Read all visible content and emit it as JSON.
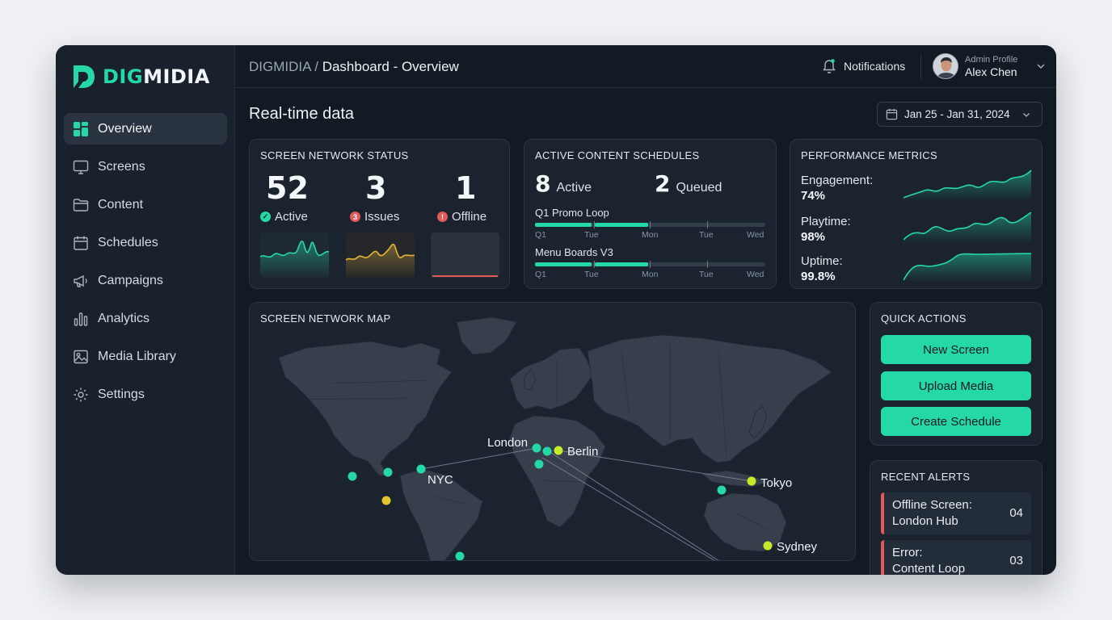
{
  "brand": {
    "name_part1": "DIG",
    "name_part2": "MIDIA"
  },
  "sidebar": {
    "items": [
      {
        "label": "Overview",
        "icon": "grid-icon",
        "active": true
      },
      {
        "label": "Screens",
        "icon": "monitor-icon"
      },
      {
        "label": "Content",
        "icon": "folder-icon"
      },
      {
        "label": "Schedules",
        "icon": "calendar-icon"
      },
      {
        "label": "Campaigns",
        "icon": "megaphone-icon"
      },
      {
        "label": "Analytics",
        "icon": "bar-chart-icon"
      },
      {
        "label": "Media Library",
        "icon": "image-icon"
      },
      {
        "label": "Settings",
        "icon": "gear-icon"
      }
    ]
  },
  "header": {
    "breadcrumb_root": "DIGMIDIA",
    "breadcrumb_sep": " / ",
    "breadcrumb_page": "Dashboard - Overview",
    "notifications_label": "Notifications",
    "profile_role": "Admin Profile",
    "profile_name": "Alex Chen"
  },
  "main": {
    "title": "Real-time data",
    "date_range": "Jan 25 - Jan 31, 2024"
  },
  "network_status": {
    "title": "SCREEN NETWORK STATUS",
    "active": {
      "value": "52",
      "label": "Active",
      "color": "#25d9a6"
    },
    "issues": {
      "value": "3",
      "label": "Issues",
      "badge": "3",
      "color": "#e05a5a"
    },
    "offline": {
      "value": "1",
      "label": "Offline",
      "badge": "!",
      "color": "#e05a5a"
    }
  },
  "schedules": {
    "title": "ACTIVE CONTENT SCHEDULES",
    "active_count": "8",
    "active_label": "Active",
    "queued_count": "2",
    "queued_label": "Queued",
    "tracks": [
      {
        "name": "Q1 Promo Loop",
        "axis": [
          "Q1",
          "Tue",
          "Mon",
          "Tue",
          "Wed"
        ]
      },
      {
        "name": "Menu Boards V3",
        "axis": [
          "Q1",
          "Tue",
          "Mon",
          "Tue",
          "Wed"
        ]
      }
    ]
  },
  "performance": {
    "title": "PERFORMANCE METRICS",
    "metrics": [
      {
        "label": "Engagement:",
        "value": "74%"
      },
      {
        "label": "Playtime:",
        "value": "98%"
      },
      {
        "label": "Uptime:",
        "value": "99.8%"
      }
    ]
  },
  "map": {
    "title": "SCREEN NETWORK MAP",
    "cities": [
      "London",
      "Berlin",
      "NYC",
      "Tokyo",
      "Sydney"
    ]
  },
  "quick_actions": {
    "title": "QUICK ACTIONS",
    "buttons": [
      "New Screen",
      "Upload Media",
      "Create Schedule"
    ]
  },
  "alerts": {
    "title": "RECENT ALERTS",
    "items": [
      {
        "line1": "Offline Screen:",
        "line2": "London Hub",
        "count": "04"
      },
      {
        "line1": "Error:",
        "line2": "Content Loop",
        "count": "03"
      }
    ]
  },
  "colors": {
    "accent": "#25d9a6",
    "warning": "#e3b53a",
    "danger": "#e05a5a",
    "node_yellow": "#c8ec2a"
  }
}
